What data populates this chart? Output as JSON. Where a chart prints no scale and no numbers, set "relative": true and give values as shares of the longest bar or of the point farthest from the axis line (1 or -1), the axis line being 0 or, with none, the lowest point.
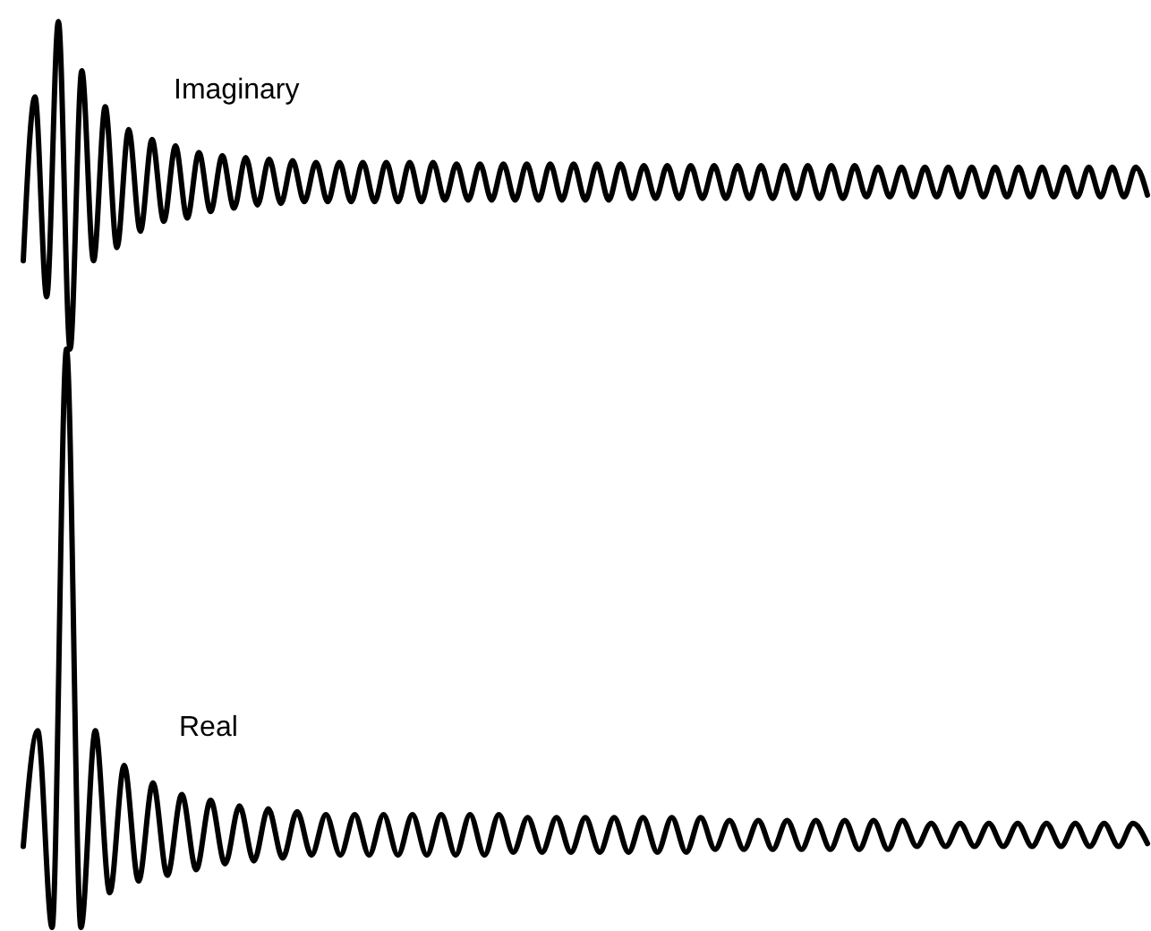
{
  "chart_data": [
    {
      "type": "line",
      "relative": true,
      "legend": false,
      "tick_labels": false,
      "categories": [
        null,
        null,
        null,
        null,
        null,
        null,
        null,
        null,
        null,
        null,
        null,
        null,
        null,
        null,
        null,
        null,
        null,
        null,
        null,
        null,
        null,
        null,
        null,
        null,
        null,
        null,
        null,
        null,
        null,
        null,
        null,
        null,
        null,
        null,
        null,
        null,
        null,
        null,
        null,
        null,
        null,
        null,
        null,
        null,
        null,
        null,
        null,
        null,
        null,
        null,
        null,
        null,
        null,
        null,
        null,
        null,
        null,
        null,
        null,
        null,
        null,
        null,
        null,
        null,
        null,
        null,
        null,
        null,
        null,
        null,
        null,
        null,
        null,
        null,
        null,
        null,
        null,
        null,
        null,
        null,
        null,
        null,
        null,
        null,
        null,
        null,
        null,
        null,
        null,
        null,
        null,
        null,
        null,
        null,
        null,
        null,
        null
      ],
      "series": [
        {
          "name": "Imaginary",
          "color": "#000000",
          "values": [
            0.27,
            0.77,
            0.16,
            1,
            0,
            0.85,
            0.27,
            0.74,
            0.31,
            0.67,
            0.36,
            0.64,
            0.39,
            0.62,
            0.4,
            0.6,
            0.42,
            0.59,
            0.43,
            0.585,
            0.44,
            0.58,
            0.445,
            0.575,
            0.45,
            0.57,
            0.45,
            0.57,
            0.45,
            0.57,
            0.45,
            0.57,
            0.45,
            0.57,
            0.45,
            0.57,
            0.455,
            0.565,
            0.455,
            0.565,
            0.455,
            0.565,
            0.455,
            0.565,
            0.455,
            0.565,
            0.455,
            0.565,
            0.455,
            0.565,
            0.455,
            0.565,
            0.46,
            0.56,
            0.46,
            0.56,
            0.46,
            0.56,
            0.46,
            0.56,
            0.46,
            0.56,
            0.46,
            0.56,
            0.46,
            0.56,
            0.46,
            0.56,
            0.46,
            0.56,
            0.46,
            0.56,
            0.465,
            0.555,
            0.465,
            0.555,
            0.465,
            0.555,
            0.465,
            0.555,
            0.465,
            0.555,
            0.465,
            0.555,
            0.465,
            0.555,
            0.465,
            0.555,
            0.465,
            0.555,
            0.465,
            0.555,
            0.465,
            0.555,
            0.465,
            0.555,
            0.47
          ]
        }
      ]
    },
    {
      "type": "line",
      "relative": true,
      "legend": false,
      "tick_labels": false,
      "categories": [
        null,
        null,
        null,
        null,
        null,
        null,
        null,
        null,
        null,
        null,
        null,
        null,
        null,
        null,
        null,
        null,
        null,
        null,
        null,
        null,
        null,
        null,
        null,
        null,
        null,
        null,
        null,
        null,
        null,
        null,
        null,
        null,
        null,
        null,
        null,
        null,
        null,
        null,
        null,
        null,
        null,
        null,
        null,
        null,
        null,
        null,
        null,
        null,
        null,
        null,
        null,
        null,
        null,
        null,
        null,
        null,
        null,
        null,
        null,
        null,
        null,
        null,
        null,
        null,
        null,
        null,
        null,
        null,
        null,
        null,
        null,
        null,
        null,
        null,
        null,
        null,
        null,
        null,
        null
      ],
      "series": [
        {
          "name": "Real",
          "color": "#000000",
          "values": [
            0.14,
            0.34,
            0,
            1,
            0,
            0.34,
            0.06,
            0.28,
            0.08,
            0.25,
            0.09,
            0.23,
            0.1,
            0.22,
            0.11,
            0.21,
            0.115,
            0.205,
            0.12,
            0.2,
            0.125,
            0.195,
            0.125,
            0.195,
            0.125,
            0.195,
            0.125,
            0.195,
            0.125,
            0.195,
            0.125,
            0.195,
            0.125,
            0.195,
            0.13,
            0.19,
            0.13,
            0.19,
            0.13,
            0.19,
            0.13,
            0.19,
            0.13,
            0.19,
            0.13,
            0.19,
            0.13,
            0.19,
            0.135,
            0.185,
            0.135,
            0.185,
            0.135,
            0.185,
            0.135,
            0.185,
            0.135,
            0.185,
            0.135,
            0.185,
            0.135,
            0.185,
            0.14,
            0.18,
            0.14,
            0.18,
            0.14,
            0.18,
            0.14,
            0.18,
            0.14,
            0.18,
            0.14,
            0.18,
            0.14,
            0.18,
            0.14,
            0.18,
            0.145
          ]
        }
      ]
    }
  ]
}
